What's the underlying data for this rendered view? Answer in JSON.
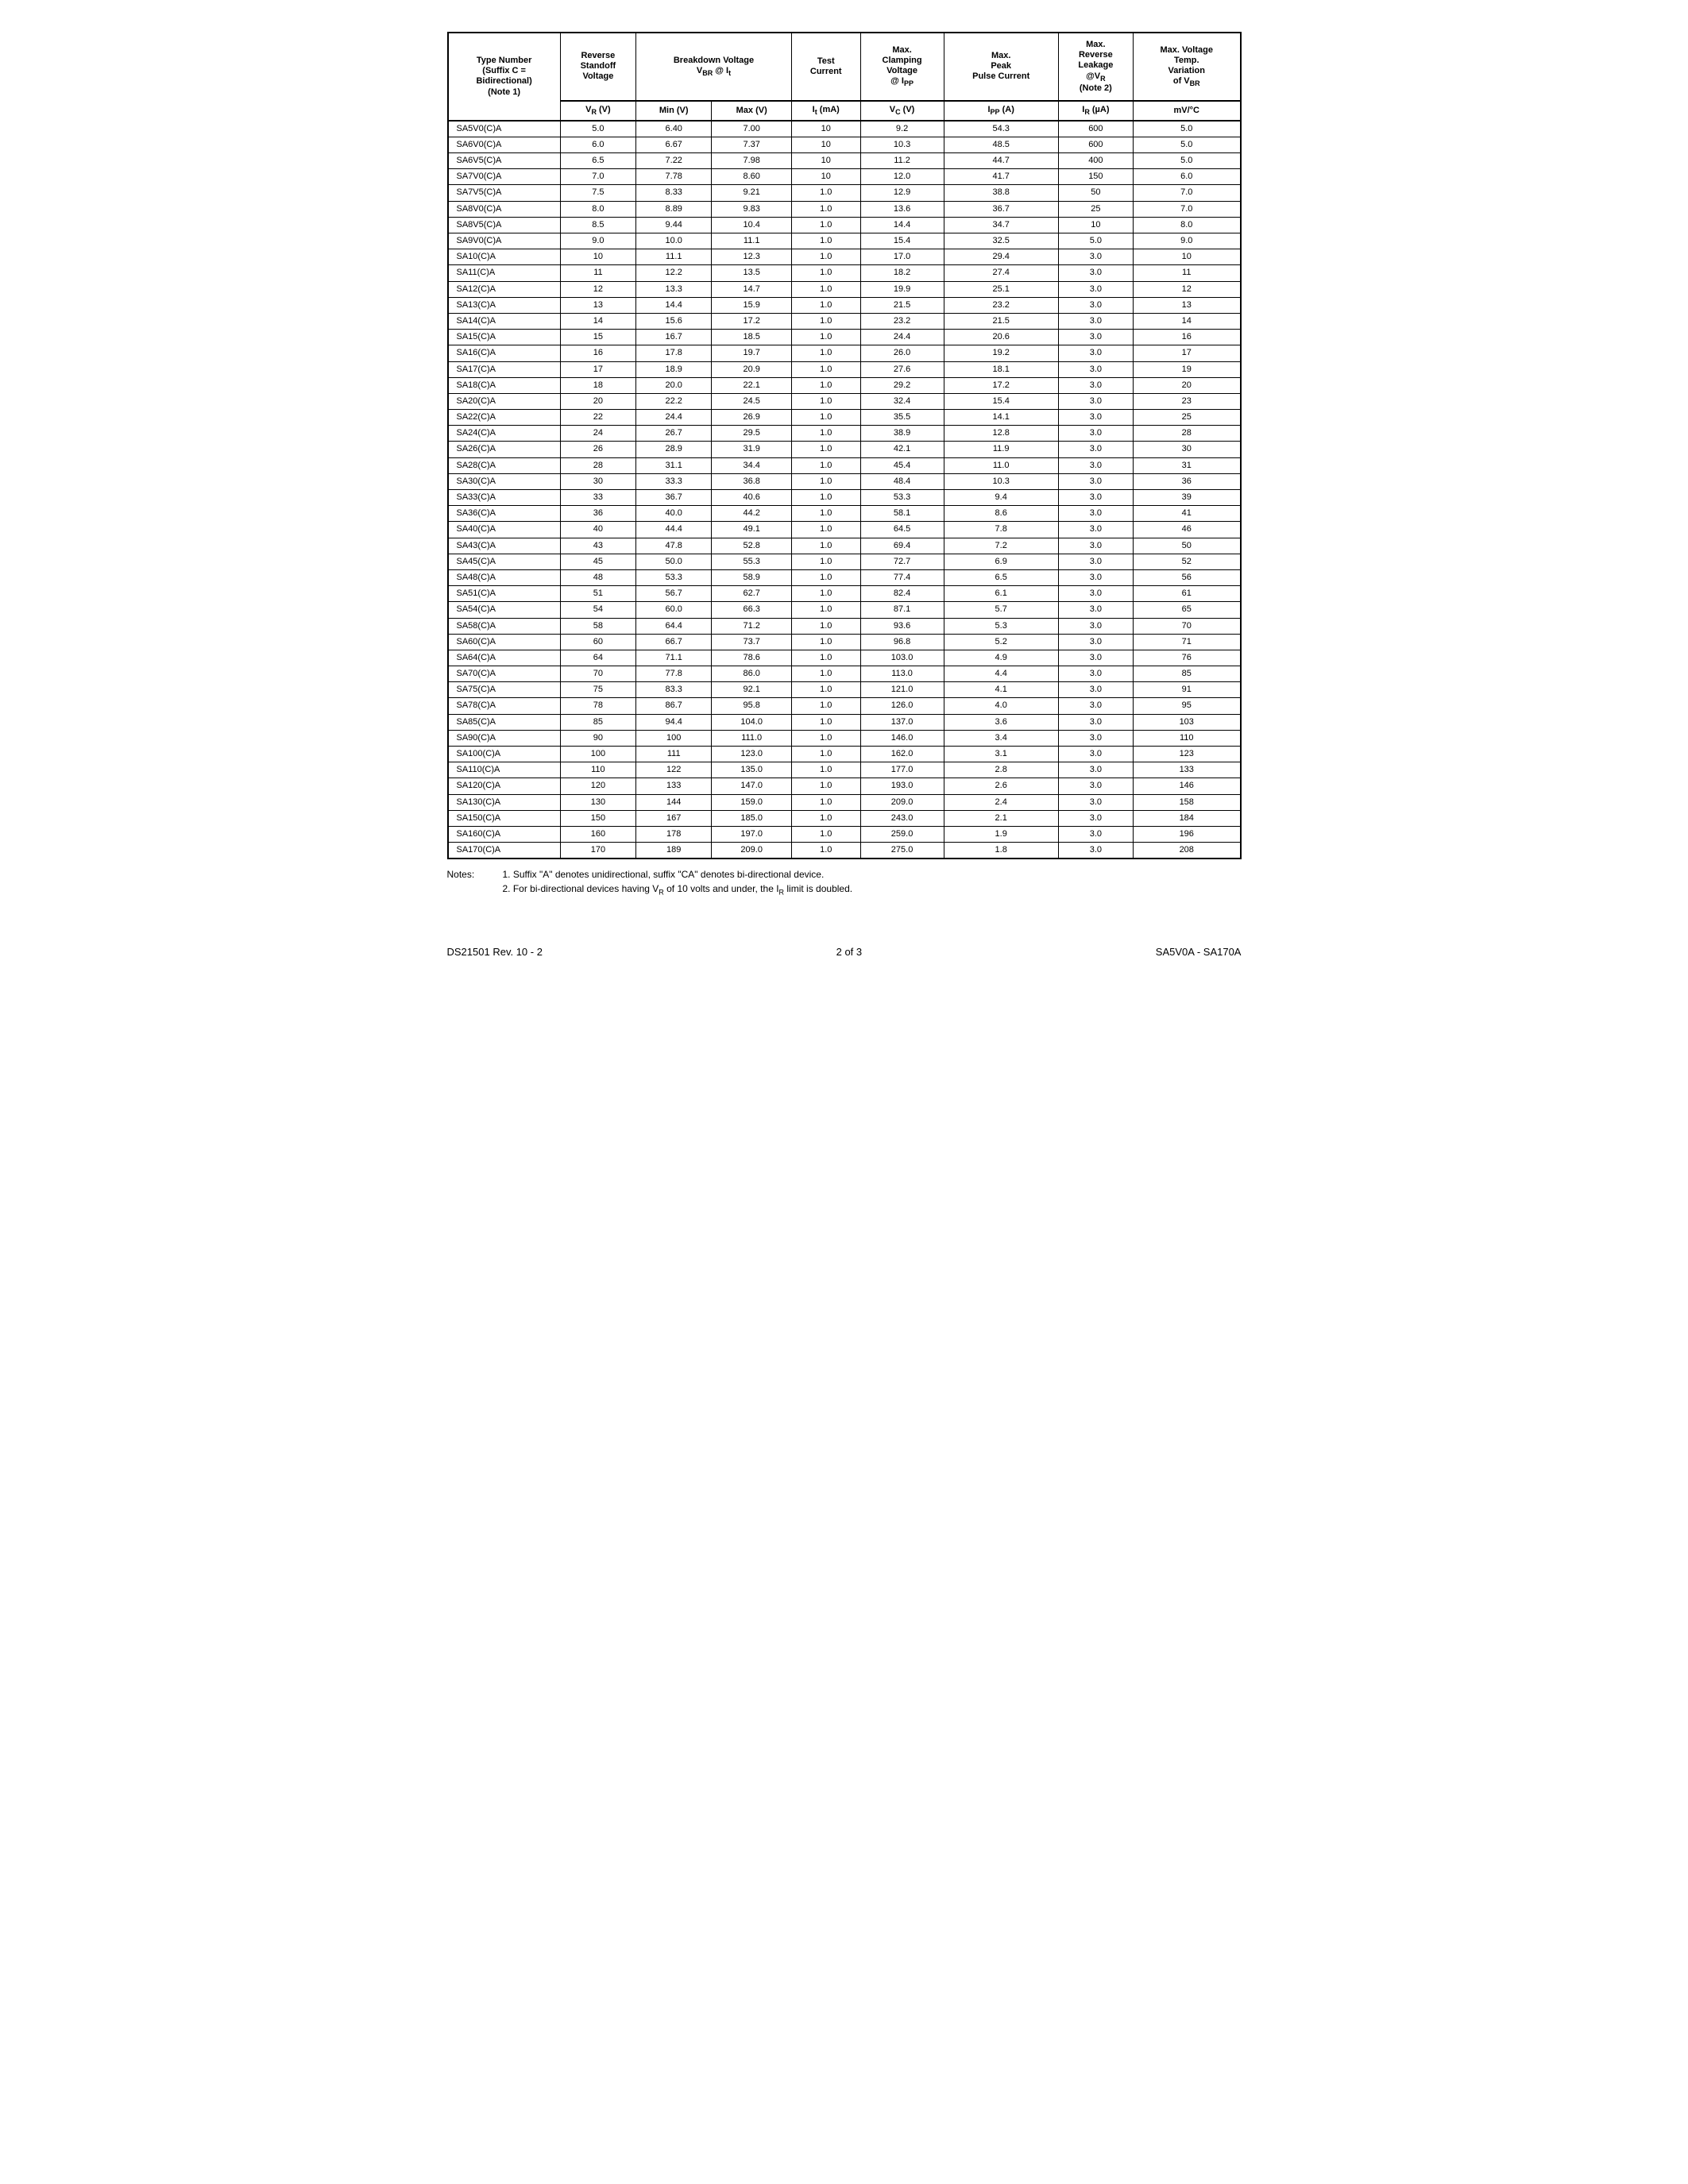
{
  "table": {
    "headers1": [
      "Type Number (Suffix C = Bidirectional) (Note 1)",
      "Reverse Standoff Voltage",
      "Breakdown Voltage V_BR @ I_t",
      "Test Current",
      "Max. Clamping Voltage @ I_PP",
      "Max. Peak Pulse Current",
      "Max. Reverse Leakage @V_R (Note 2)",
      "Max. Voltage Temp. Variation of V_BR"
    ],
    "headers2": [
      "V_R (V)",
      "Min (V)",
      "Max (V)",
      "I_t (mA)",
      "V_C (V)",
      "I_PP (A)",
      "I_R (µA)",
      "mV/°C"
    ],
    "rows": [
      [
        "SA5V0(C)A",
        "5.0",
        "6.40",
        "7.00",
        "10",
        "9.2",
        "54.3",
        "600",
        "5.0"
      ],
      [
        "SA6V0(C)A",
        "6.0",
        "6.67",
        "7.37",
        "10",
        "10.3",
        "48.5",
        "600",
        "5.0"
      ],
      [
        "SA6V5(C)A",
        "6.5",
        "7.22",
        "7.98",
        "10",
        "11.2",
        "44.7",
        "400",
        "5.0"
      ],
      [
        "SA7V0(C)A",
        "7.0",
        "7.78",
        "8.60",
        "10",
        "12.0",
        "41.7",
        "150",
        "6.0"
      ],
      [
        "SA7V5(C)A",
        "7.5",
        "8.33",
        "9.21",
        "1.0",
        "12.9",
        "38.8",
        "50",
        "7.0"
      ],
      [
        "SA8V0(C)A",
        "8.0",
        "8.89",
        "9.83",
        "1.0",
        "13.6",
        "36.7",
        "25",
        "7.0"
      ],
      [
        "SA8V5(C)A",
        "8.5",
        "9.44",
        "10.4",
        "1.0",
        "14.4",
        "34.7",
        "10",
        "8.0"
      ],
      [
        "SA9V0(C)A",
        "9.0",
        "10.0",
        "11.1",
        "1.0",
        "15.4",
        "32.5",
        "5.0",
        "9.0"
      ],
      [
        "SA10(C)A",
        "10",
        "11.1",
        "12.3",
        "1.0",
        "17.0",
        "29.4",
        "3.0",
        "10"
      ],
      [
        "SA11(C)A",
        "11",
        "12.2",
        "13.5",
        "1.0",
        "18.2",
        "27.4",
        "3.0",
        "11"
      ],
      [
        "SA12(C)A",
        "12",
        "13.3",
        "14.7",
        "1.0",
        "19.9",
        "25.1",
        "3.0",
        "12"
      ],
      [
        "SA13(C)A",
        "13",
        "14.4",
        "15.9",
        "1.0",
        "21.5",
        "23.2",
        "3.0",
        "13"
      ],
      [
        "SA14(C)A",
        "14",
        "15.6",
        "17.2",
        "1.0",
        "23.2",
        "21.5",
        "3.0",
        "14"
      ],
      [
        "SA15(C)A",
        "15",
        "16.7",
        "18.5",
        "1.0",
        "24.4",
        "20.6",
        "3.0",
        "16"
      ],
      [
        "SA16(C)A",
        "16",
        "17.8",
        "19.7",
        "1.0",
        "26.0",
        "19.2",
        "3.0",
        "17"
      ],
      [
        "SA17(C)A",
        "17",
        "18.9",
        "20.9",
        "1.0",
        "27.6",
        "18.1",
        "3.0",
        "19"
      ],
      [
        "SA18(C)A",
        "18",
        "20.0",
        "22.1",
        "1.0",
        "29.2",
        "17.2",
        "3.0",
        "20"
      ],
      [
        "SA20(C)A",
        "20",
        "22.2",
        "24.5",
        "1.0",
        "32.4",
        "15.4",
        "3.0",
        "23"
      ],
      [
        "SA22(C)A",
        "22",
        "24.4",
        "26.9",
        "1.0",
        "35.5",
        "14.1",
        "3.0",
        "25"
      ],
      [
        "SA24(C)A",
        "24",
        "26.7",
        "29.5",
        "1.0",
        "38.9",
        "12.8",
        "3.0",
        "28"
      ],
      [
        "SA26(C)A",
        "26",
        "28.9",
        "31.9",
        "1.0",
        "42.1",
        "11.9",
        "3.0",
        "30"
      ],
      [
        "SA28(C)A",
        "28",
        "31.1",
        "34.4",
        "1.0",
        "45.4",
        "11.0",
        "3.0",
        "31"
      ],
      [
        "SA30(C)A",
        "30",
        "33.3",
        "36.8",
        "1.0",
        "48.4",
        "10.3",
        "3.0",
        "36"
      ],
      [
        "SA33(C)A",
        "33",
        "36.7",
        "40.6",
        "1.0",
        "53.3",
        "9.4",
        "3.0",
        "39"
      ],
      [
        "SA36(C)A",
        "36",
        "40.0",
        "44.2",
        "1.0",
        "58.1",
        "8.6",
        "3.0",
        "41"
      ],
      [
        "SA40(C)A",
        "40",
        "44.4",
        "49.1",
        "1.0",
        "64.5",
        "7.8",
        "3.0",
        "46"
      ],
      [
        "SA43(C)A",
        "43",
        "47.8",
        "52.8",
        "1.0",
        "69.4",
        "7.2",
        "3.0",
        "50"
      ],
      [
        "SA45(C)A",
        "45",
        "50.0",
        "55.3",
        "1.0",
        "72.7",
        "6.9",
        "3.0",
        "52"
      ],
      [
        "SA48(C)A",
        "48",
        "53.3",
        "58.9",
        "1.0",
        "77.4",
        "6.5",
        "3.0",
        "56"
      ],
      [
        "SA51(C)A",
        "51",
        "56.7",
        "62.7",
        "1.0",
        "82.4",
        "6.1",
        "3.0",
        "61"
      ],
      [
        "SA54(C)A",
        "54",
        "60.0",
        "66.3",
        "1.0",
        "87.1",
        "5.7",
        "3.0",
        "65"
      ],
      [
        "SA58(C)A",
        "58",
        "64.4",
        "71.2",
        "1.0",
        "93.6",
        "5.3",
        "3.0",
        "70"
      ],
      [
        "SA60(C)A",
        "60",
        "66.7",
        "73.7",
        "1.0",
        "96.8",
        "5.2",
        "3.0",
        "71"
      ],
      [
        "SA64(C)A",
        "64",
        "71.1",
        "78.6",
        "1.0",
        "103.0",
        "4.9",
        "3.0",
        "76"
      ],
      [
        "SA70(C)A",
        "70",
        "77.8",
        "86.0",
        "1.0",
        "113.0",
        "4.4",
        "3.0",
        "85"
      ],
      [
        "SA75(C)A",
        "75",
        "83.3",
        "92.1",
        "1.0",
        "121.0",
        "4.1",
        "3.0",
        "91"
      ],
      [
        "SA78(C)A",
        "78",
        "86.7",
        "95.8",
        "1.0",
        "126.0",
        "4.0",
        "3.0",
        "95"
      ],
      [
        "SA85(C)A",
        "85",
        "94.4",
        "104.0",
        "1.0",
        "137.0",
        "3.6",
        "3.0",
        "103"
      ],
      [
        "SA90(C)A",
        "90",
        "100",
        "111.0",
        "1.0",
        "146.0",
        "3.4",
        "3.0",
        "110"
      ],
      [
        "SA100(C)A",
        "100",
        "111",
        "123.0",
        "1.0",
        "162.0",
        "3.1",
        "3.0",
        "123"
      ],
      [
        "SA110(C)A",
        "110",
        "122",
        "135.0",
        "1.0",
        "177.0",
        "2.8",
        "3.0",
        "133"
      ],
      [
        "SA120(C)A",
        "120",
        "133",
        "147.0",
        "1.0",
        "193.0",
        "2.6",
        "3.0",
        "146"
      ],
      [
        "SA130(C)A",
        "130",
        "144",
        "159.0",
        "1.0",
        "209.0",
        "2.4",
        "3.0",
        "158"
      ],
      [
        "SA150(C)A",
        "150",
        "167",
        "185.0",
        "1.0",
        "243.0",
        "2.1",
        "3.0",
        "184"
      ],
      [
        "SA160(C)A",
        "160",
        "178",
        "197.0",
        "1.0",
        "259.0",
        "1.9",
        "3.0",
        "196"
      ],
      [
        "SA170(C)A",
        "170",
        "189",
        "209.0",
        "1.0",
        "275.0",
        "1.8",
        "3.0",
        "208"
      ]
    ]
  },
  "notes": {
    "label": "Notes:",
    "line1": "1. Suffix \"A\" denotes unidirectional, suffix \"CA\" denotes bi-directional device.",
    "line2": "2. For bi-directional devices having V_R of 10 volts and under, the I_R limit is doubled."
  },
  "footer": {
    "left": "DS21501 Rev. 10 - 2",
    "center": "2 of 3",
    "right": "SA5V0A - SA170A"
  }
}
